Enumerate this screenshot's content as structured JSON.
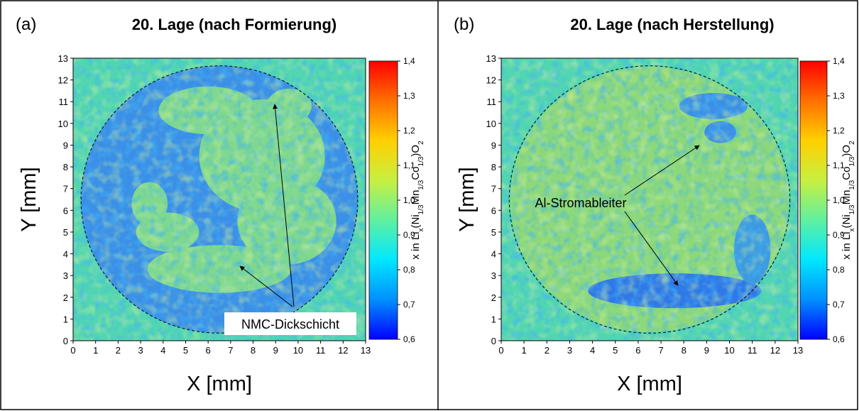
{
  "chart_data": [
    {
      "type": "heatmap",
      "panel_label": "(a)",
      "title": "20. Lage (nach Formierung)",
      "xlabel": "X [mm]",
      "ylabel": "Y [mm]",
      "xlim": [
        0,
        13
      ],
      "ylim": [
        0,
        13
      ],
      "xticks": [
        0,
        1,
        2,
        3,
        4,
        5,
        6,
        7,
        8,
        9,
        10,
        11,
        12,
        13
      ],
      "yticks": [
        0,
        1,
        2,
        3,
        4,
        5,
        6,
        7,
        8,
        9,
        10,
        11,
        12,
        13
      ],
      "colorbar": {
        "label": [
          "x in Li",
          "x",
          "(Ni",
          "1/3",
          "Mn",
          "1/3",
          "Co",
          "1/3",
          ")O",
          "2"
        ],
        "lim": [
          0.6,
          1.4
        ],
        "ticks": [
          {
            "value": 0.6,
            "label": "0,6"
          },
          {
            "value": 0.7,
            "label": "0,7"
          },
          {
            "value": 0.8,
            "label": "0,8"
          },
          {
            "value": 0.9,
            "label": "0,9"
          },
          {
            "value": 1.0,
            "label": "1,0"
          },
          {
            "value": 1.1,
            "label": "1,1"
          },
          {
            "value": 1.2,
            "label": "1,2"
          },
          {
            "value": 1.3,
            "label": "1,3"
          },
          {
            "value": 1.4,
            "label": "1,4"
          }
        ],
        "colormap": [
          "#0000ff",
          "#0090ff",
          "#00e8ff",
          "#60f0a0",
          "#c8f040",
          "#ffd000",
          "#ff7000",
          "#ff0000"
        ]
      },
      "annotations": [
        "NMC-Dickschicht"
      ]
    },
    {
      "type": "heatmap",
      "panel_label": "(b)",
      "title": "20. Lage (nach Herstellung)",
      "xlabel": "X [mm]",
      "ylabel": "Y [mm]",
      "xlim": [
        0,
        13
      ],
      "ylim": [
        0,
        13
      ],
      "xticks": [
        0,
        1,
        2,
        3,
        4,
        5,
        6,
        7,
        8,
        9,
        10,
        11,
        12,
        13
      ],
      "yticks": [
        0,
        1,
        2,
        3,
        4,
        5,
        6,
        7,
        8,
        9,
        10,
        11,
        12,
        13
      ],
      "colorbar": {
        "label": [
          "x in Li",
          "x",
          "(Ni",
          "1/3",
          "Mn",
          "1/3",
          "Co",
          "1/3",
          ")O",
          "2"
        ],
        "lim": [
          0.6,
          1.4
        ],
        "ticks": [
          {
            "value": 0.6,
            "label": "0,6"
          },
          {
            "value": 0.7,
            "label": "0,7"
          },
          {
            "value": 0.8,
            "label": "0,8"
          },
          {
            "value": 0.9,
            "label": "0,9"
          },
          {
            "value": 1.0,
            "label": "1,0"
          },
          {
            "value": 1.1,
            "label": "1,1"
          },
          {
            "value": 1.2,
            "label": "1,2"
          },
          {
            "value": 1.3,
            "label": "1,3"
          },
          {
            "value": 1.4,
            "label": "1,4"
          }
        ],
        "colormap": [
          "#0000ff",
          "#0090ff",
          "#00e8ff",
          "#60f0a0",
          "#c8f040",
          "#ffd000",
          "#ff7000",
          "#ff0000"
        ]
      },
      "annotations": [
        "Al-Stromableiter"
      ]
    }
  ]
}
